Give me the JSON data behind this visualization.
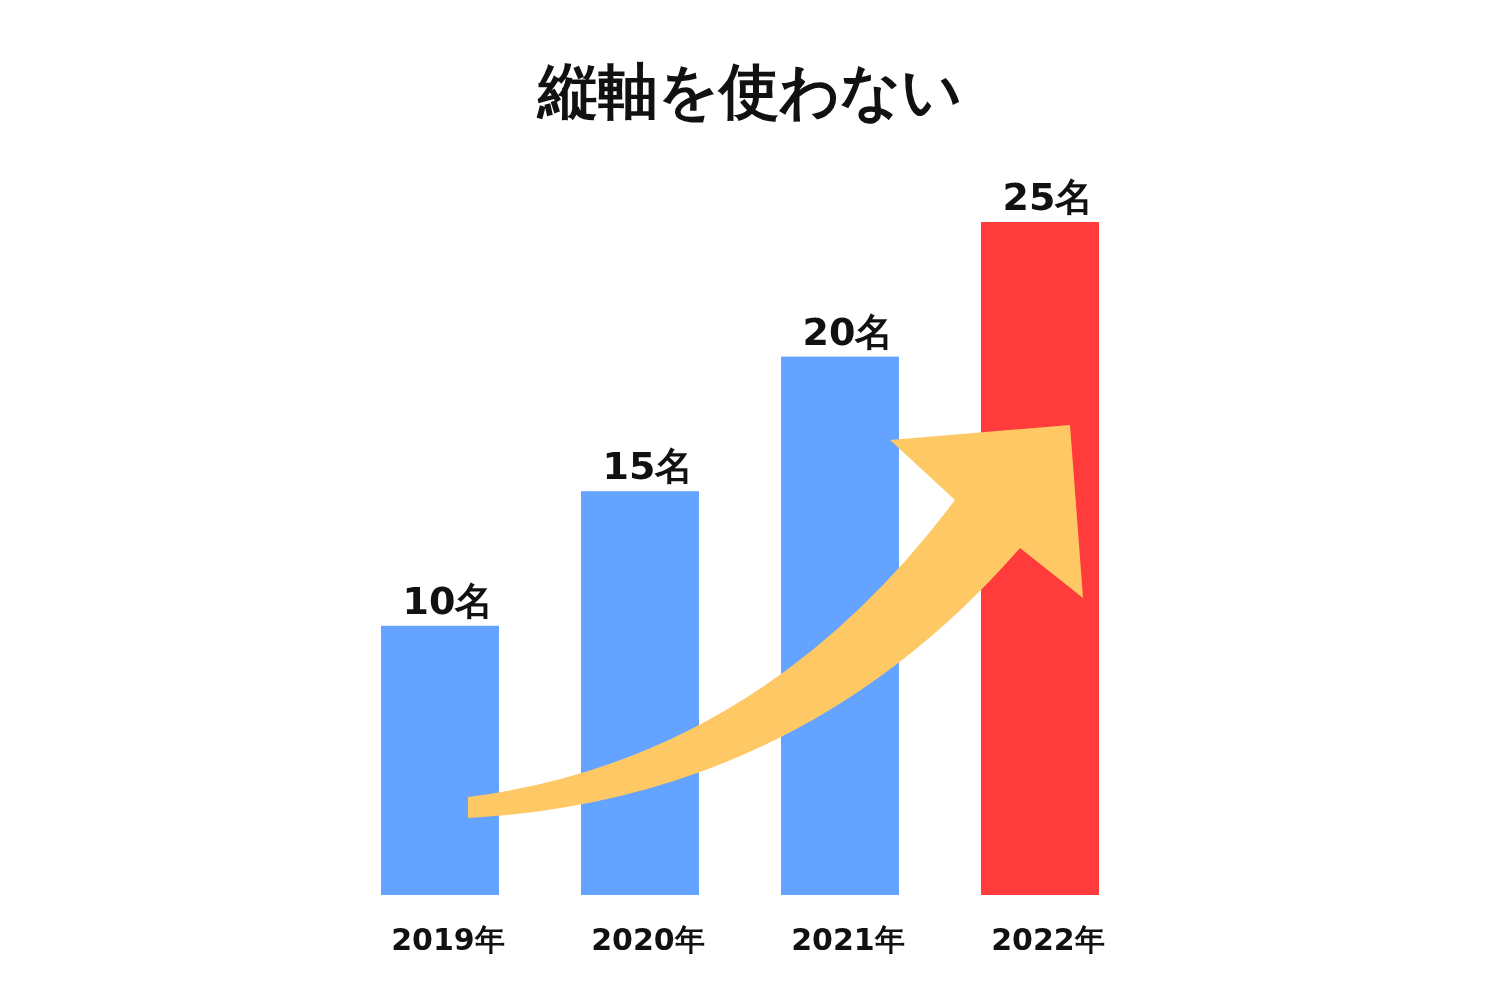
{
  "chart_data": {
    "type": "bar",
    "title": "縦軸を使わない",
    "categories": [
      "2019年",
      "2020年",
      "2021年",
      "2022年"
    ],
    "values": [
      10,
      15,
      20,
      25
    ],
    "colors": [
      "#64a3ff",
      "#64a3ff",
      "#64a3ff",
      "#ff3b3b"
    ],
    "value_labels": [
      "10名",
      "15名",
      "20名",
      "25名"
    ]
  }
}
